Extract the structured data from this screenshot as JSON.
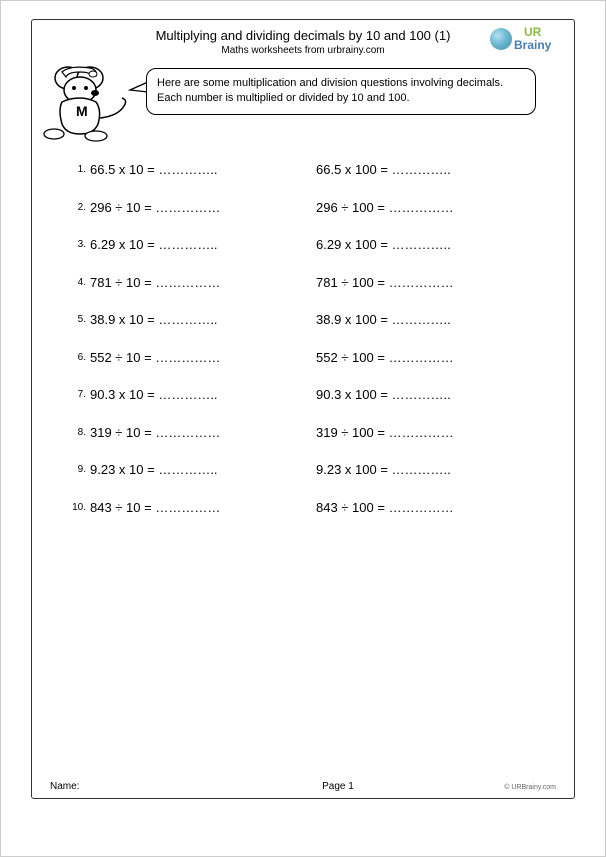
{
  "header": {
    "title": "Multiplying and dividing decimals by 10 and 100 (1)",
    "subtitle": "Maths worksheets from urbrainy.com"
  },
  "logo": {
    "ur": "UR",
    "brainy": "Brainy"
  },
  "speech": {
    "line1": "Here are some multiplication and division questions involving decimals.",
    "line2": "Each number is multiplied or divided by 10 and 100."
  },
  "blank": "…………..",
  "blank2": "……………",
  "questions": [
    {
      "n": "1.",
      "a": "66.5 x 10 = ",
      "b": "66.5 x 100 = ",
      "dotsA": "…………..",
      "dotsB": "…………..",
      "right_pad": ""
    },
    {
      "n": "2.",
      "a": "296 ÷ 10 = ",
      "b": "296 ÷ 100 = ",
      "dotsA": "……………",
      "dotsB": "……………",
      "right_pad": ""
    },
    {
      "n": "3.",
      "a": "6.29 x 10 = ",
      "b": "6.29 x 100 = ",
      "dotsA": "…………..",
      "dotsB": "…………..",
      "right_pad": ""
    },
    {
      "n": "4.",
      "a": "781 ÷ 10 = ",
      "b": "781 ÷ 100 = ",
      "dotsA": "……………",
      "dotsB": "……………",
      "right_pad": ""
    },
    {
      "n": "5.",
      "a": "38.9 x 10 = ",
      "b": "38.9 x 100 = ",
      "dotsA": "…………..",
      "dotsB": "…………..",
      "right_pad": ""
    },
    {
      "n": "6.",
      "a": "552 ÷ 10 = ",
      "b": "552 ÷ 100 = ",
      "dotsA": "……………",
      "dotsB": "……………",
      "right_pad": ""
    },
    {
      "n": "7.",
      "a": "90.3 x 10 = ",
      "b": "90.3 x 100 = ",
      "dotsA": "…………..",
      "dotsB": "…………..",
      "right_pad": ""
    },
    {
      "n": "8.",
      "a": "319 ÷ 10 = ",
      "b": "319 ÷ 100 = ",
      "dotsA": "……………",
      "dotsB": "……………",
      "right_pad": ""
    },
    {
      "n": "9.",
      "a": "9.23 x 10 = ",
      "b": "9.23 x 100 = ",
      "dotsA": "…………..",
      "dotsB": "…………..",
      "right_pad": ""
    },
    {
      "n": "10.",
      "a": "843 ÷ 10 = ",
      "b": "843 ÷ 100 = ",
      "dotsA": "……………",
      "dotsB": "……………",
      "right_pad": ""
    }
  ],
  "footer": {
    "name": "Name:",
    "page": "Page 1",
    "copy": "© URBrainy.com"
  }
}
